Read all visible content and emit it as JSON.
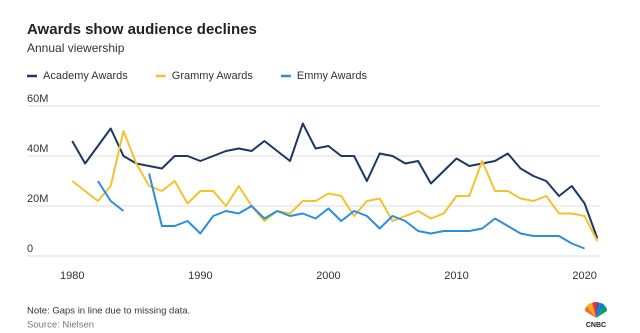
{
  "chart_data": {
    "type": "line",
    "title": "Awards show audience declines",
    "subtitle": "Annual viewership",
    "note": "Note: Gaps in line due to missing data.",
    "source": "Source: Nielsen",
    "logo": "CNBC",
    "x": [
      1980,
      1981,
      1982,
      1983,
      1984,
      1985,
      1986,
      1987,
      1988,
      1989,
      1990,
      1991,
      1992,
      1993,
      1994,
      1995,
      1996,
      1997,
      1998,
      1999,
      2000,
      2001,
      2002,
      2003,
      2004,
      2005,
      2006,
      2007,
      2008,
      2009,
      2010,
      2011,
      2012,
      2013,
      2014,
      2015,
      2016,
      2017,
      2018,
      2019,
      2020,
      2021
    ],
    "series": [
      {
        "name": "Academy Awards",
        "color": "#1b3766",
        "values": [
          46,
          37,
          44,
          51,
          40,
          37,
          36,
          35,
          40,
          40,
          38,
          40,
          42,
          43,
          42,
          46,
          42,
          38,
          53,
          43,
          44,
          40,
          40,
          30,
          41,
          40,
          37,
          38,
          29,
          34,
          39,
          36,
          37,
          38,
          41,
          35,
          32,
          30,
          24,
          28,
          21,
          7
        ]
      },
      {
        "name": "Grammy Awards",
        "color": "#f5c12e",
        "values": [
          30,
          26,
          22,
          28,
          50,
          37,
          28,
          26,
          30,
          21,
          26,
          26,
          20,
          28,
          20,
          14,
          18,
          17,
          22,
          22,
          25,
          24,
          16,
          22,
          23,
          14,
          16,
          18,
          15,
          17,
          24,
          24,
          38,
          26,
          26,
          23,
          22,
          24,
          17,
          17,
          16,
          6
        ]
      },
      {
        "name": "Emmy Awards",
        "color": "#2a8fdb",
        "values": [
          null,
          null,
          30,
          22,
          18,
          null,
          33,
          12,
          12,
          14,
          9,
          16,
          18,
          17,
          20,
          15,
          18,
          16,
          17,
          15,
          19,
          14,
          18,
          16,
          11,
          16,
          14,
          10,
          9,
          10,
          10,
          10,
          11,
          15,
          12,
          9,
          8,
          8,
          8,
          5,
          3,
          null
        ]
      }
    ],
    "xlim": [
      1979.2,
      2021.2
    ],
    "xticks": [
      1980,
      1990,
      2000,
      2010,
      2020
    ],
    "ylim": [
      0,
      60
    ],
    "yticks": [
      0,
      {
        "value": 20,
        "label": "20M"
      },
      {
        "value": 40,
        "label": "40M"
      },
      {
        "value": 60,
        "label": "60M"
      }
    ],
    "grid": true
  }
}
